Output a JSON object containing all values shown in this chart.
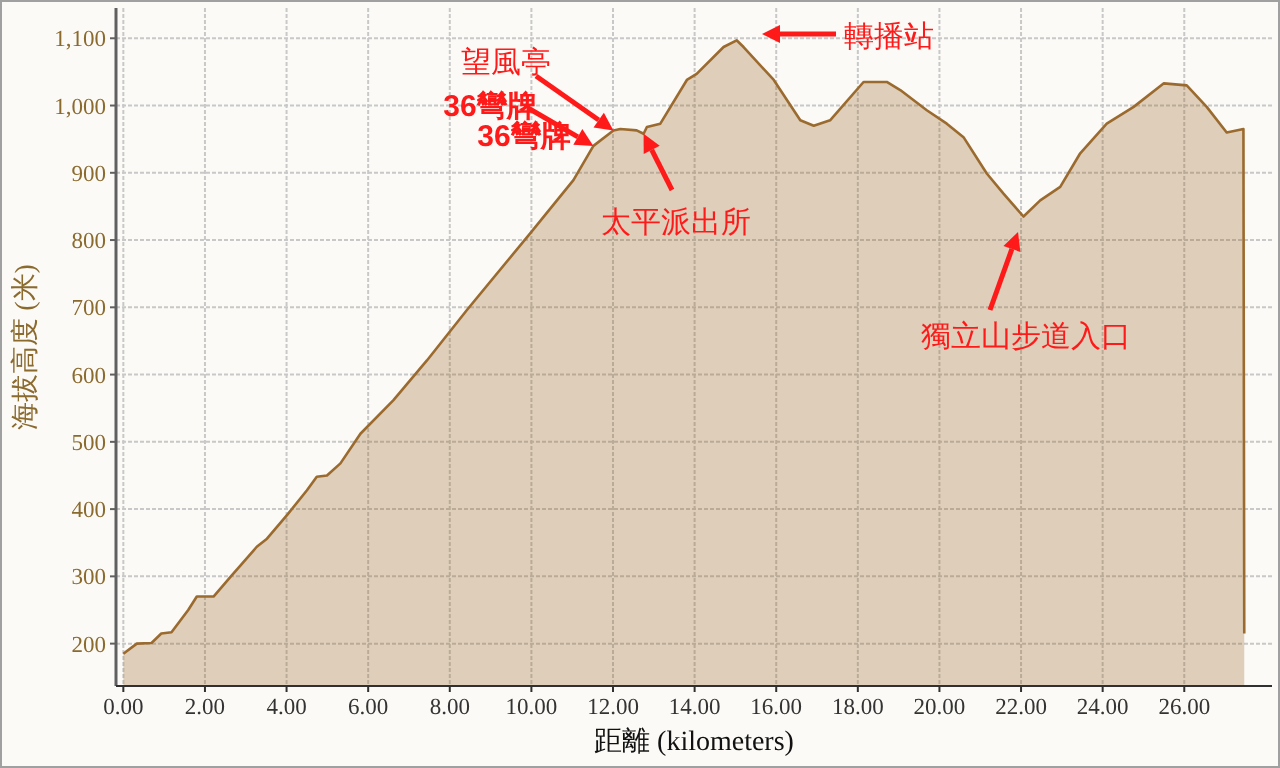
{
  "chart_data": {
    "type": "area",
    "xlabel": "距離 (kilometers)",
    "ylabel": "海拔高度 (米)",
    "color": "#9b6a2e",
    "x": [
      0,
      0.33,
      0.69,
      0.93,
      1.18,
      1.59,
      1.8,
      2.21,
      2.62,
      3.27,
      3.52,
      4.01,
      4.5,
      4.74,
      4.99,
      5.32,
      5.81,
      6.62,
      7.44,
      8.42,
      9.97,
      11.03,
      11.52,
      12.01,
      12.18,
      12.58,
      12.75,
      12.83,
      13.16,
      13.81,
      14.05,
      14.71,
      15.03,
      15.2,
      15.94,
      16.59,
      16.92,
      17.32,
      18.14,
      18.71,
      19.04,
      19.69,
      20.18,
      20.59,
      21.16,
      21.57,
      22.06,
      22.47,
      22.96,
      23.45,
      24.1,
      24.76,
      25.5,
      26.06,
      26.55,
      27.04,
      27.45,
      27.47
    ],
    "values": [
      185,
      200,
      201,
      215,
      217,
      250,
      270,
      270,
      299,
      344,
      356,
      391,
      428,
      448,
      450,
      468,
      512,
      562,
      621,
      696,
      810,
      889,
      940,
      963,
      965,
      963,
      958,
      968,
      973,
      1038,
      1047,
      1087,
      1097,
      1087,
      1038,
      978,
      970,
      978,
      1035,
      1035,
      1023,
      993,
      973,
      953,
      899,
      869,
      835,
      859,
      879,
      929,
      973,
      998,
      1033,
      1030,
      998,
      960,
      965,
      215
    ],
    "xlim": [
      -0.18,
      28.15
    ],
    "ylim": [
      137,
      1145
    ],
    "xticks": [
      {
        "value": 0,
        "label": "0.00"
      },
      {
        "value": 2,
        "label": "2.00"
      },
      {
        "value": 4,
        "label": "4.00"
      },
      {
        "value": 6,
        "label": "6.00"
      },
      {
        "value": 8,
        "label": "8.00"
      },
      {
        "value": 10,
        "label": "10.00"
      },
      {
        "value": 12,
        "label": "12.00"
      },
      {
        "value": 14,
        "label": "14.00"
      },
      {
        "value": 16,
        "label": "16.00"
      },
      {
        "value": 18,
        "label": "18.00"
      },
      {
        "value": 20,
        "label": "20.00"
      },
      {
        "value": 22,
        "label": "22.00"
      },
      {
        "value": 24,
        "label": "24.00"
      },
      {
        "value": 26,
        "label": "26.00"
      }
    ],
    "yticks": [
      200,
      300,
      400,
      500,
      600,
      700,
      800,
      900,
      {
        "value": 1000,
        "label": "1,000"
      },
      {
        "value": 1100,
        "label": "1,100"
      }
    ],
    "grid": true,
    "marker": "none",
    "annotations": [
      {
        "text": "望風亭",
        "x": 12.01,
        "y": 963
      },
      {
        "text": "36彎牌",
        "x": 11.52,
        "y": 940
      },
      "36彎牌",
      {
        "text": "太平派出所",
        "x": 12.75,
        "y": 958
      },
      "轉播站",
      "獨立山步道入口"
    ]
  }
}
